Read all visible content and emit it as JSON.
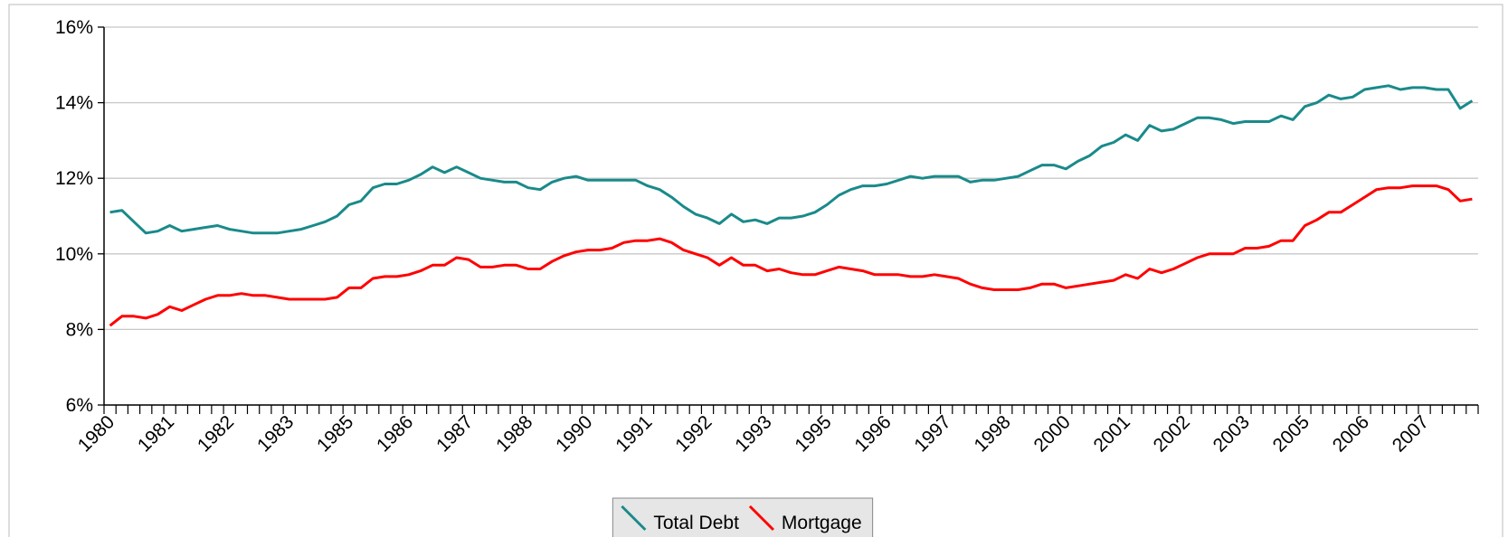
{
  "chart_data": {
    "type": "line",
    "categories": [
      "1980",
      null,
      null,
      null,
      null,
      "1981",
      null,
      null,
      null,
      null,
      "1982",
      null,
      null,
      null,
      null,
      "1983",
      null,
      null,
      null,
      null,
      "1985",
      null,
      null,
      null,
      null,
      "1986",
      null,
      null,
      null,
      null,
      "1987",
      null,
      null,
      null,
      null,
      "1988",
      null,
      null,
      null,
      null,
      "1990",
      null,
      null,
      null,
      null,
      "1991",
      null,
      null,
      null,
      null,
      "1992",
      null,
      null,
      null,
      null,
      "1993",
      null,
      null,
      null,
      null,
      "1995",
      null,
      null,
      null,
      null,
      "1996",
      null,
      null,
      null,
      null,
      "1997",
      null,
      null,
      null,
      null,
      "1998",
      null,
      null,
      null,
      null,
      "2000",
      null,
      null,
      null,
      null,
      "2001",
      null,
      null,
      null,
      null,
      "2002",
      null,
      null,
      null,
      null,
      "2003",
      null,
      null,
      null,
      null,
      "2005",
      null,
      null,
      null,
      null,
      "2006",
      null,
      null,
      null,
      null,
      "2007",
      null,
      null,
      null,
      null
    ],
    "series": [
      {
        "name": "Total Debt",
        "color": "#1a8a8a",
        "values": [
          11.1,
          11.15,
          10.85,
          10.55,
          10.6,
          10.75,
          10.6,
          10.65,
          10.7,
          10.75,
          10.65,
          10.6,
          10.55,
          10.55,
          10.55,
          10.6,
          10.65,
          10.75,
          10.85,
          11.0,
          11.3,
          11.4,
          11.75,
          11.85,
          11.85,
          11.95,
          12.1,
          12.3,
          12.15,
          12.3,
          12.15,
          12.0,
          11.95,
          11.9,
          11.9,
          11.75,
          11.7,
          11.9,
          12.0,
          12.05,
          11.95,
          11.95,
          11.95,
          11.95,
          11.95,
          11.8,
          11.7,
          11.5,
          11.25,
          11.05,
          10.95,
          10.8,
          11.05,
          10.85,
          10.9,
          10.8,
          10.95,
          10.95,
          11.0,
          11.1,
          11.3,
          11.55,
          11.7,
          11.8,
          11.8,
          11.85,
          11.95,
          12.05,
          12.0,
          12.05,
          12.05,
          12.05,
          11.9,
          11.95,
          11.95,
          12.0,
          12.05,
          12.2,
          12.35,
          12.35,
          12.25,
          12.45,
          12.6,
          12.85,
          12.95,
          13.15,
          13.0,
          13.4,
          13.25,
          13.3,
          13.45,
          13.6,
          13.6,
          13.55,
          13.45,
          13.5,
          13.5,
          13.5,
          13.65,
          13.55,
          13.9,
          14.0,
          14.2,
          14.1,
          14.15,
          14.35,
          14.4,
          14.45,
          14.35,
          14.4,
          14.4,
          14.35,
          14.35,
          13.85,
          14.05
        ]
      },
      {
        "name": "Mortgage",
        "color": "#ff0000",
        "values": [
          8.1,
          8.35,
          8.35,
          8.3,
          8.4,
          8.6,
          8.5,
          8.65,
          8.8,
          8.9,
          8.9,
          8.95,
          8.9,
          8.9,
          8.85,
          8.8,
          8.8,
          8.8,
          8.8,
          8.85,
          9.1,
          9.1,
          9.35,
          9.4,
          9.4,
          9.45,
          9.55,
          9.7,
          9.7,
          9.9,
          9.85,
          9.65,
          9.65,
          9.7,
          9.7,
          9.6,
          9.6,
          9.8,
          9.95,
          10.05,
          10.1,
          10.1,
          10.15,
          10.3,
          10.35,
          10.35,
          10.4,
          10.3,
          10.1,
          10.0,
          9.9,
          9.7,
          9.9,
          9.7,
          9.7,
          9.55,
          9.6,
          9.5,
          9.45,
          9.45,
          9.55,
          9.65,
          9.6,
          9.55,
          9.45,
          9.45,
          9.45,
          9.4,
          9.4,
          9.45,
          9.4,
          9.35,
          9.2,
          9.1,
          9.05,
          9.05,
          9.05,
          9.1,
          9.2,
          9.2,
          9.1,
          9.15,
          9.2,
          9.25,
          9.3,
          9.45,
          9.35,
          9.6,
          9.5,
          9.6,
          9.75,
          9.9,
          10.0,
          10.0,
          10.0,
          10.15,
          10.15,
          10.2,
          10.35,
          10.35,
          10.75,
          10.9,
          11.1,
          11.1,
          11.3,
          11.5,
          11.7,
          11.75,
          11.75,
          11.8,
          11.8,
          11.8,
          11.7,
          11.4,
          11.45
        ]
      }
    ],
    "ylim": [
      6,
      16
    ],
    "yticks": [
      {
        "value": 6,
        "label": "6%"
      },
      {
        "value": 8,
        "label": "8%"
      },
      {
        "value": 10,
        "label": "10%"
      },
      {
        "value": 12,
        "label": "12%"
      },
      {
        "value": 14,
        "label": "14%"
      },
      {
        "value": 16,
        "label": "16%"
      }
    ],
    "grid": true
  }
}
